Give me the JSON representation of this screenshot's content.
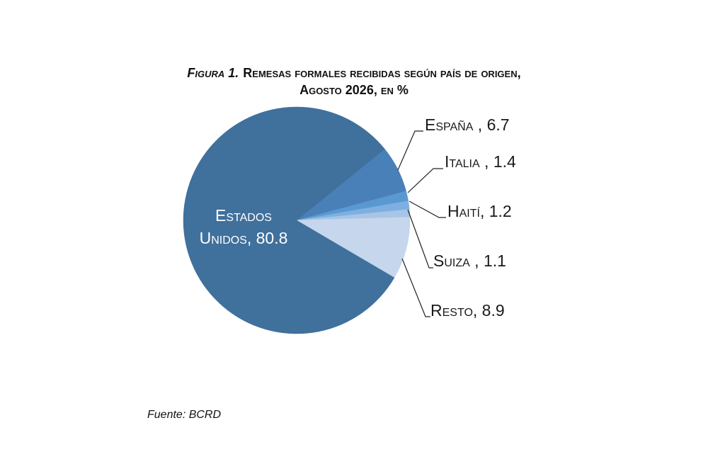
{
  "figure_label": "Figura 1.",
  "chart_data": {
    "type": "pie",
    "title": [
      "Remesas formales recibidas según país de origen,",
      "Agosto 2026, en %"
    ],
    "values": [
      6.7,
      1.4,
      1.2,
      1.1,
      8.9,
      80.8
    ],
    "data_labels": [
      "España , 6.7",
      "Italia , 1.4",
      "Haití, 1.2",
      "Suiza , 1.1",
      "Resto, 8.9",
      [
        "Estados",
        "Unidos, 80.8"
      ]
    ],
    "colors": [
      "#4a80b8",
      "#5a98d2",
      "#7db0e0",
      "#a8c4e6",
      "#c6d6ec",
      "#40709c"
    ]
  },
  "source": "Fuente: BCRD"
}
